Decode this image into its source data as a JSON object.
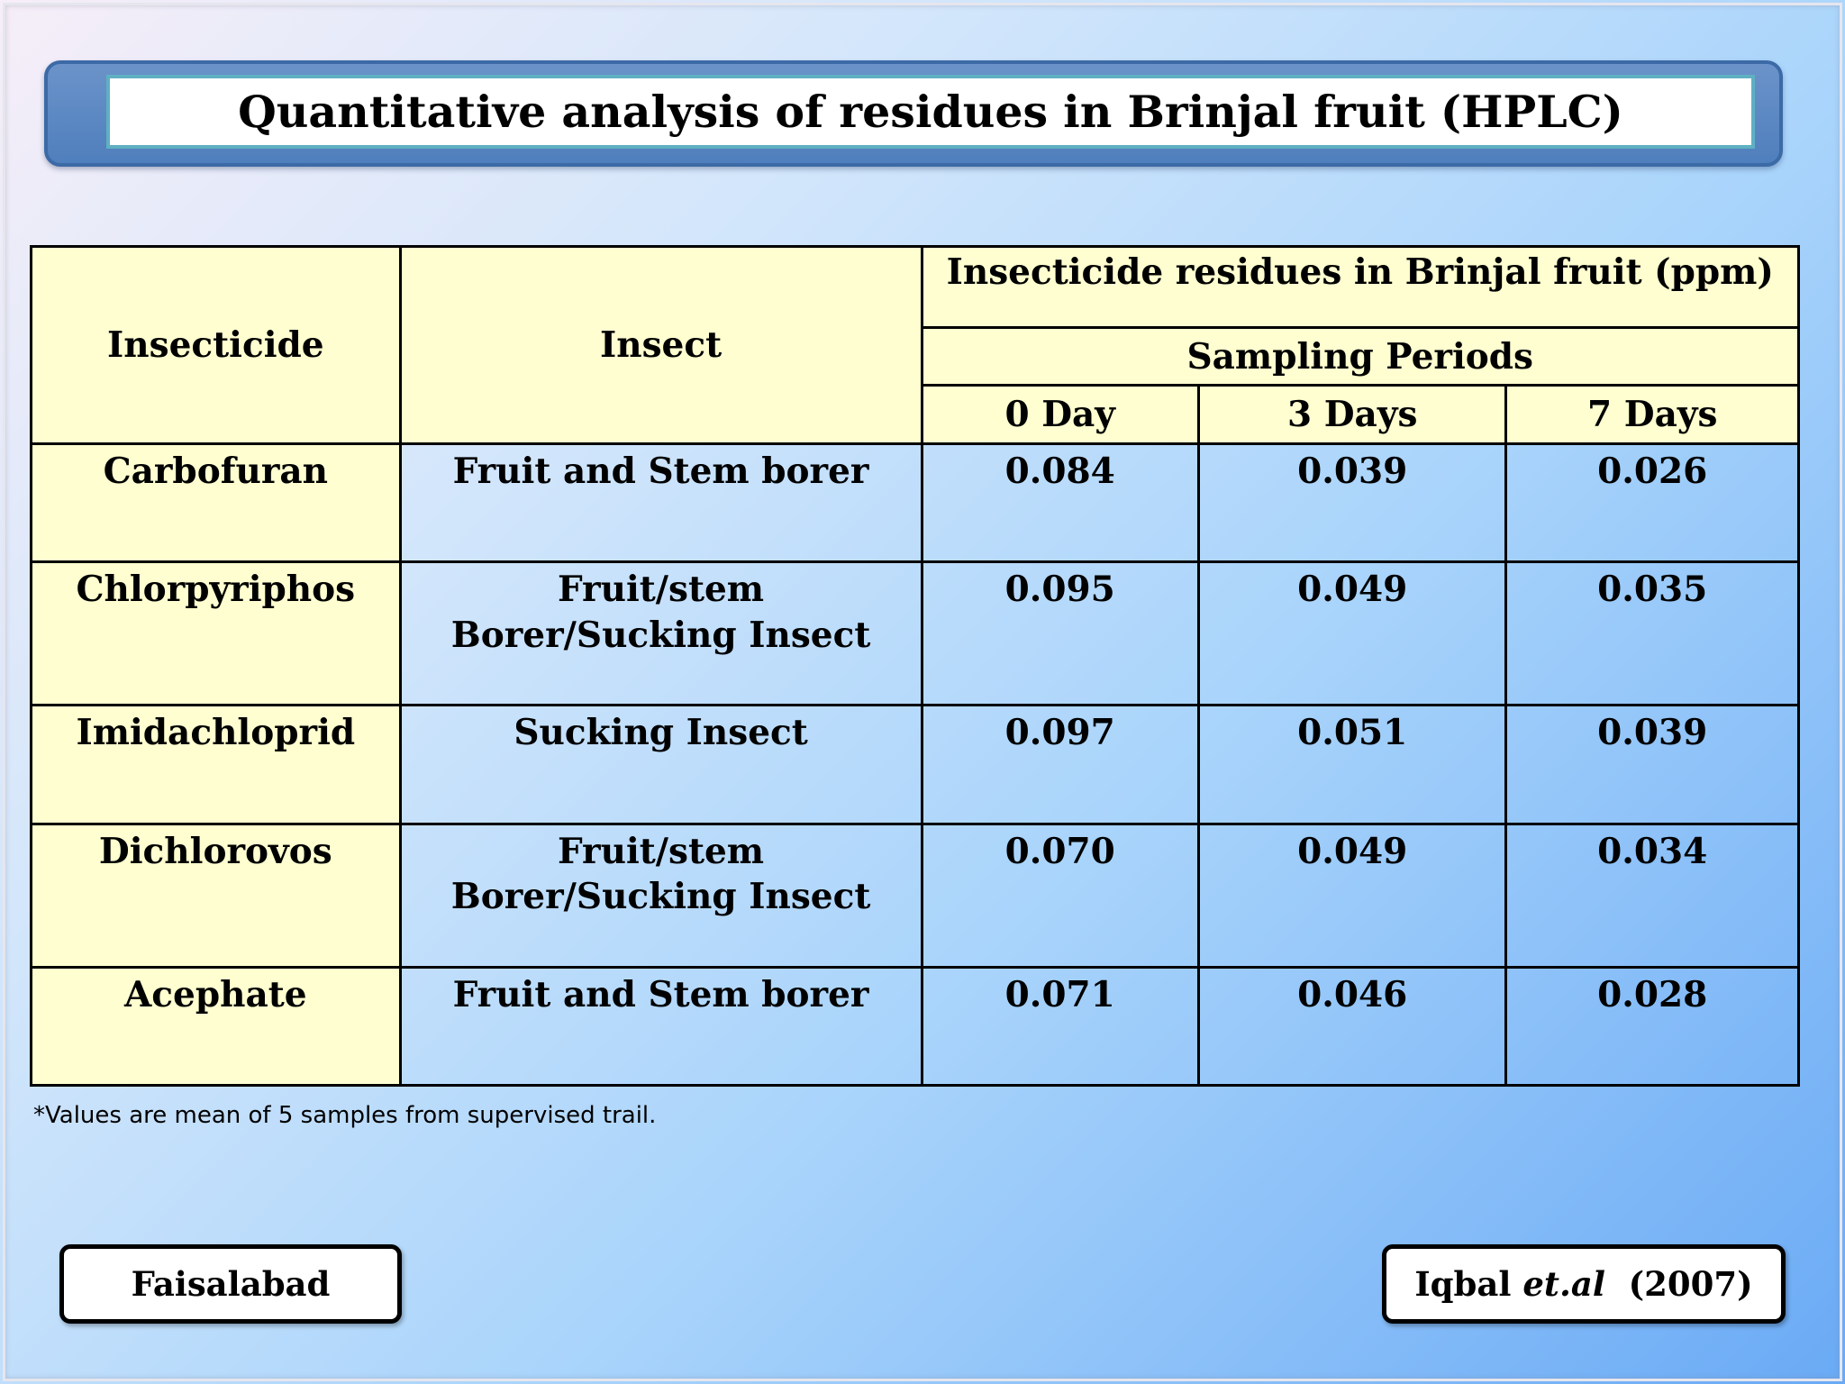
{
  "title": "Quantitative analysis of residues in Brinjal fruit (HPLC)",
  "table": {
    "header": {
      "insecticide": "Insecticide",
      "insect": "Insect",
      "residues": "Insecticide residues in Brinjal fruit (ppm)",
      "sampling": "Sampling Periods",
      "periods": [
        "0 Day",
        "3 Days",
        "7 Days"
      ]
    },
    "rows": [
      {
        "insecticide": "Carbofuran",
        "insect": [
          "Fruit and Stem borer"
        ],
        "values": [
          "0.084",
          "0.039",
          "0.026"
        ]
      },
      {
        "insecticide": "Chlorpyriphos",
        "insect": [
          "Fruit/stem",
          "Borer/Sucking Insect"
        ],
        "values": [
          "0.095",
          "0.049",
          "0.035"
        ]
      },
      {
        "insecticide": "Imidachloprid",
        "insect": [
          "Sucking Insect"
        ],
        "values": [
          "0.097",
          "0.051",
          "0.039"
        ]
      },
      {
        "insecticide": "Dichlorovos",
        "insect": [
          "Fruit/stem",
          "Borer/Sucking Insect"
        ],
        "values": [
          "0.070",
          "0.049",
          "0.034"
        ]
      },
      {
        "insecticide": "Acephate",
        "insect": [
          "Fruit and Stem borer"
        ],
        "values": [
          "0.071",
          "0.046",
          "0.028"
        ]
      }
    ]
  },
  "footnote": "*Values are mean of 5 samples from supervised trail.",
  "location": "Faisalabad",
  "citation": {
    "author": "Iqbal",
    "etal": "et.al",
    "year": "(2007)"
  }
}
